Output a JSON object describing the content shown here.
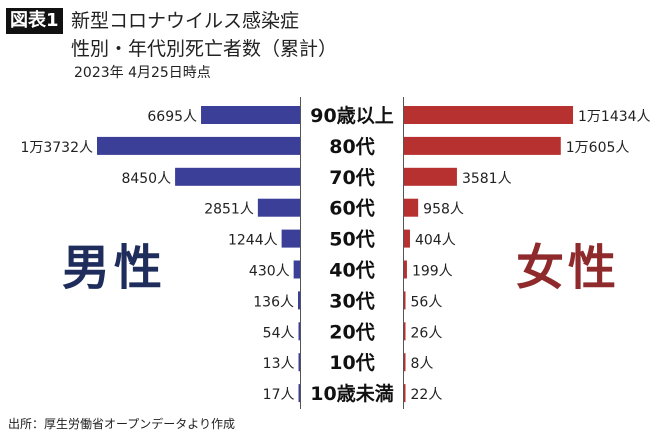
{
  "header": {
    "badge": "図表1",
    "title_line1": "新型コロナウイルス感染症",
    "title_line2": "性別・年代別死亡者数（累計）",
    "date": "2023年 4月25日時点"
  },
  "labels": {
    "male": "男性",
    "female": "女性"
  },
  "source": "出所：厚生労働省オープンデータより作成",
  "colors": {
    "male": "#3c3f97",
    "female": "#b73131",
    "male_label": "#1f2d5c",
    "female_label": "#8e2a2c"
  },
  "chart_data": {
    "type": "bar",
    "orientation": "horizontal-diverging",
    "categories": [
      "90歳以上",
      "80代",
      "70代",
      "60代",
      "50代",
      "40代",
      "30代",
      "20代",
      "10代",
      "10歳未満"
    ],
    "series": [
      {
        "name": "男性",
        "values": [
          6695,
          13732,
          8450,
          2851,
          1244,
          430,
          136,
          54,
          13,
          17
        ],
        "data_labels": [
          "6695人",
          "1万3732人",
          "8450人",
          "2851人",
          "1244人",
          "430人",
          "136人",
          "54人",
          "13人",
          "17人"
        ]
      },
      {
        "name": "女性",
        "values": [
          11434,
          10605,
          3581,
          958,
          404,
          199,
          56,
          26,
          8,
          22
        ],
        "data_labels": [
          "1万1434人",
          "1万605人",
          "3581人",
          "958人",
          "404人",
          "199人",
          "56人",
          "26人",
          "8人",
          "22人"
        ]
      }
    ]
  }
}
